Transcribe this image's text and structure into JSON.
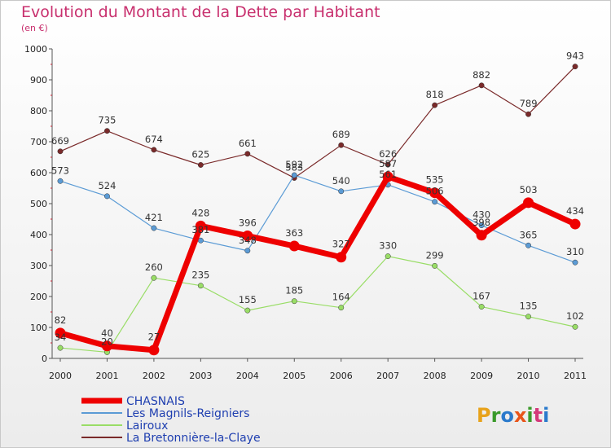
{
  "title": "Evolution du Montant de la Dette par Habitant",
  "subtitle": "(en €)",
  "watermark": "Proxiti",
  "chart_data": {
    "type": "line",
    "categories": [
      "2000",
      "2001",
      "2002",
      "2003",
      "2004",
      "2005",
      "2006",
      "2007",
      "2008",
      "2009",
      "2010",
      "2011"
    ],
    "ylim": [
      0,
      1000
    ],
    "yticks": [
      0,
      100,
      200,
      300,
      400,
      500,
      600,
      700,
      800,
      900,
      1000
    ],
    "grid": false,
    "legend": "bottom-left",
    "series": [
      {
        "name": "CHASNAIS",
        "color": "#ee0000",
        "values": [
          82,
          40,
          27,
          428,
          396,
          363,
          327,
          587,
          535,
          398,
          503,
          434
        ]
      },
      {
        "name": "Les Magnils-Reigniers",
        "color": "#5b9bd5",
        "values": [
          573,
          524,
          421,
          381,
          348,
          592,
          540,
          561,
          506,
          430,
          365,
          310
        ]
      },
      {
        "name": "Lairoux",
        "color": "#99dd66",
        "values": [
          34,
          20,
          260,
          235,
          155,
          185,
          164,
          330,
          299,
          167,
          135,
          102
        ]
      },
      {
        "name": "La Bretonnière-la-Claye",
        "color": "#7a2a2a",
        "values": [
          669,
          735,
          674,
          625,
          661,
          583,
          689,
          626,
          818,
          882,
          789,
          943
        ]
      }
    ]
  }
}
